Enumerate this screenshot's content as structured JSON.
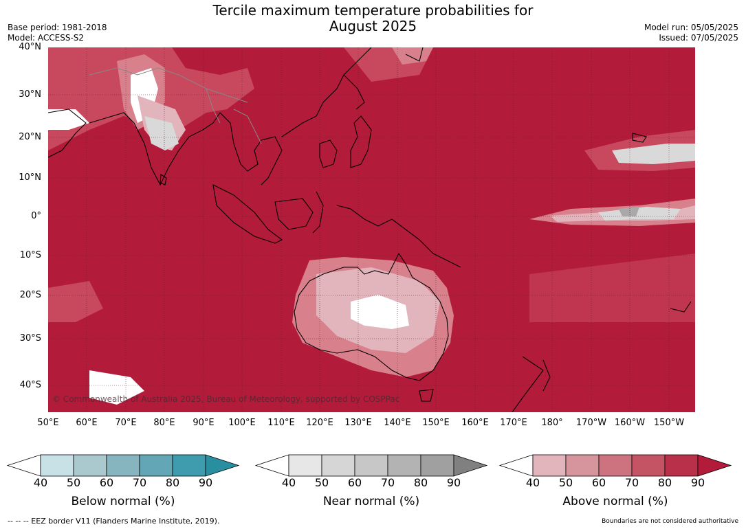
{
  "title_line1": "Tercile maximum temperature probabilities for",
  "title_line2": "August 2025",
  "base_period": "Base period: 1981-2018",
  "model": "Model: ACCESS-S2",
  "model_run": "Model run: 05/05/2025",
  "issued": "Issued: 07/05/2025",
  "map": {
    "lat_labels": [
      "40°N",
      "30°N",
      "20°N",
      "10°N",
      "0°",
      "10°S",
      "20°S",
      "30°S",
      "40°S"
    ],
    "lon_labels": [
      "50°E",
      "60°E",
      "70°E",
      "80°E",
      "90°E",
      "100°E",
      "110°E",
      "120°E",
      "130°E",
      "140°E",
      "150°E",
      "160°E",
      "170°E",
      "180°",
      "170°W",
      "160°W",
      "150°W"
    ],
    "credit": "© Commonwealth of Australia 2025, Bureau of Meteorology, supported by COSPPac",
    "colors": {
      "above_90": "#b31b3a",
      "above_70": "#c8485e",
      "above_50": "#d9808d",
      "above_40": "#e2b4bb",
      "near": "#d9d9d9",
      "below": "#c8e1e6",
      "land_border": "#000000",
      "country_border": "#888888"
    }
  },
  "colorbars": [
    {
      "title": "Below normal (%)",
      "ticks": [
        "40",
        "50",
        "60",
        "70",
        "80",
        "90"
      ],
      "colors": [
        "#ffffff",
        "#c8e1e6",
        "#a9c9ce",
        "#86b4bf",
        "#63a7b6",
        "#3f9cae",
        "#2a8ea1"
      ]
    },
    {
      "title": "Near normal (%)",
      "ticks": [
        "40",
        "50",
        "60",
        "70",
        "80",
        "90"
      ],
      "colors": [
        "#ffffff",
        "#e7e7e7",
        "#d6d6d6",
        "#c7c7c7",
        "#b3b3b3",
        "#a0a0a0",
        "#808080"
      ]
    },
    {
      "title": "Above normal (%)",
      "ticks": [
        "40",
        "50",
        "60",
        "70",
        "80",
        "90"
      ],
      "colors": [
        "#ffffff",
        "#e2b4bb",
        "#d6959d",
        "#cc737f",
        "#c45463",
        "#b8304a",
        "#b31b3a"
      ]
    }
  ],
  "footer_left": "--  --  -- EEZ border V11 (Flanders Marine Institute, 2019).",
  "footer_right": "Boundaries are not considered authoritative"
}
